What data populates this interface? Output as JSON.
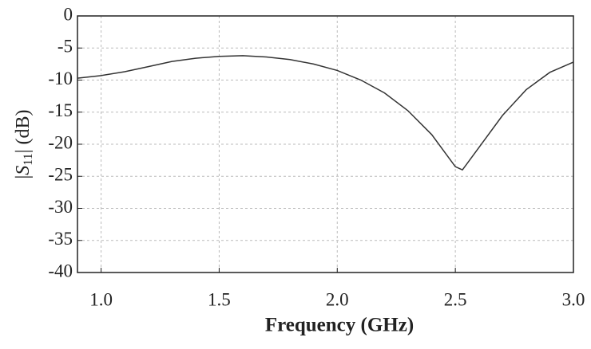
{
  "chart_data": {
    "type": "line",
    "xlabel": "Frequency (GHz)",
    "ylabel": {
      "open": "|",
      "var": "S",
      "sub": "11",
      "close": "| (dB)"
    },
    "x": [
      0.9,
      1.0,
      1.1,
      1.2,
      1.3,
      1.4,
      1.5,
      1.6,
      1.7,
      1.8,
      1.9,
      2.0,
      2.1,
      2.2,
      2.3,
      2.4,
      2.45,
      2.5,
      2.53,
      2.55,
      2.6,
      2.7,
      2.8,
      2.9,
      3.0
    ],
    "series": [
      {
        "color": "#333333",
        "values": [
          -9.7,
          -9.3,
          -8.7,
          -7.9,
          -7.1,
          -6.6,
          -6.3,
          -6.2,
          -6.4,
          -6.8,
          -7.5,
          -8.5,
          -10.0,
          -12.0,
          -14.8,
          -18.5,
          -21.0,
          -23.5,
          -24.0,
          -23.0,
          -20.5,
          -15.5,
          -11.5,
          -8.8,
          -7.2
        ]
      }
    ],
    "xlim": [
      0.9,
      3.0
    ],
    "ylim": [
      -40,
      0
    ],
    "xticks": [
      {
        "value": 1,
        "label": "1.0"
      },
      1.5,
      {
        "value": 2,
        "label": "2.0"
      },
      2.5,
      {
        "value": 3,
        "label": "3.0"
      }
    ],
    "yticks": [
      0,
      -5,
      -10,
      -15,
      -20,
      -25,
      -30,
      -35,
      -40
    ],
    "grid": true
  }
}
